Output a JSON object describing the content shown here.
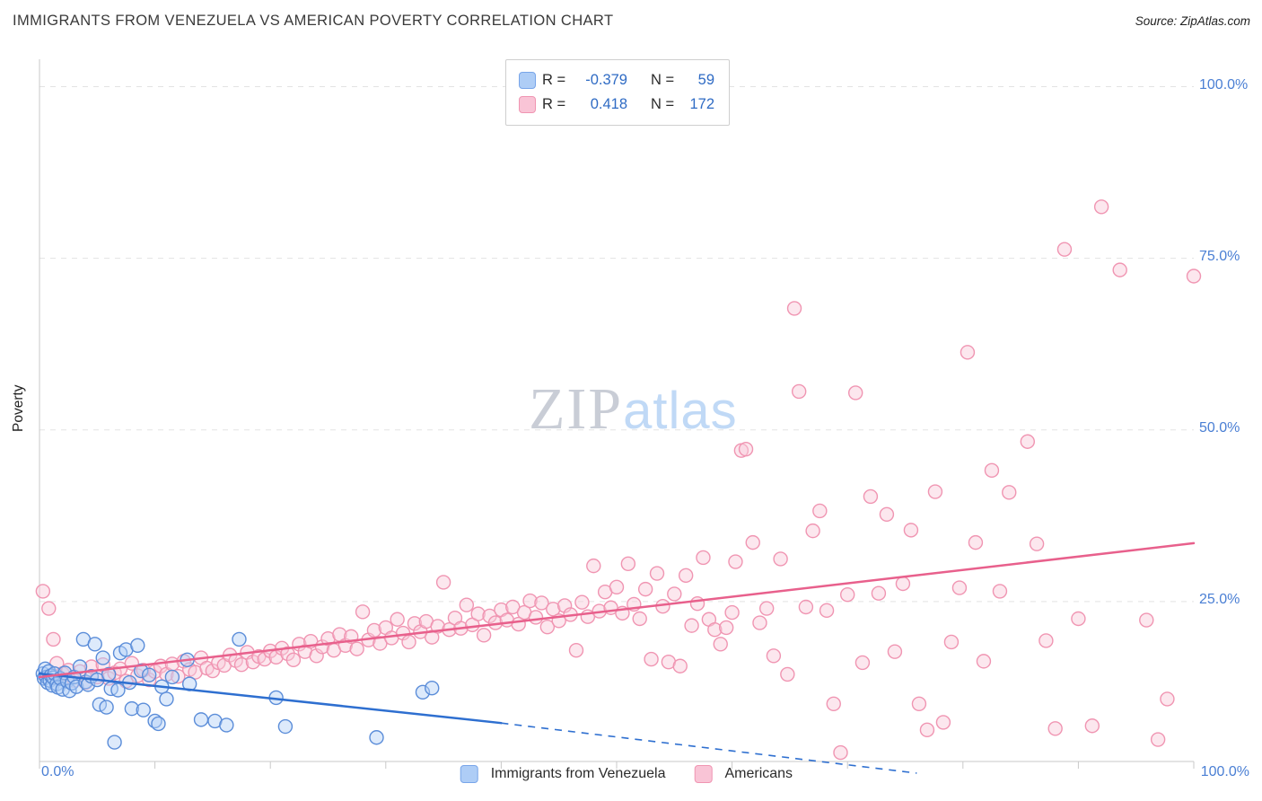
{
  "title": "IMMIGRANTS FROM VENEZUELA VS AMERICAN POVERTY CORRELATION CHART",
  "source": "Source: ZipAtlas.com",
  "watermark": {
    "zip": "ZIP",
    "atlas": "atlas"
  },
  "axes": {
    "y_label": "Poverty",
    "x_min_label": "0.0%",
    "x_max_label": "100.0%",
    "y_tick_labels": [
      "100.0%",
      "75.0%",
      "50.0%",
      "25.0%"
    ]
  },
  "legend_box": {
    "rows": [
      {
        "r_label": "R =",
        "r_value": "-0.379",
        "n_label": "N =",
        "n_value": "59"
      },
      {
        "r_label": "R =",
        "r_value": "0.418",
        "n_label": "N =",
        "n_value": "172"
      }
    ]
  },
  "bottom_legend": [
    {
      "label": "Immigrants from Venezuela"
    },
    {
      "label": "Americans"
    }
  ],
  "colors": {
    "tick_label_blue": "#4a7fd4",
    "value_blue": "#2f6bc4",
    "grid": "#e3e3e3",
    "axis": "#c9c9c9"
  },
  "chart_data": {
    "type": "scatter",
    "title": "IMMIGRANTS FROM VENEZUELA VS AMERICAN POVERTY CORRELATION CHART",
    "xlabel": "Immigrants from Venezuela (%)",
    "ylabel": "Poverty",
    "xlim": [
      0,
      100
    ],
    "ylim": [
      0,
      100
    ],
    "x_unit": "%",
    "y_unit": "%",
    "grid": "horizontal-dashed",
    "legend_position": "bottom-center",
    "series": [
      {
        "name": "Immigrants from Venezuela",
        "R": -0.379,
        "N": 59,
        "fill": "#b3d0f7",
        "edge": "#5b8dd9",
        "points": [
          [
            0.3,
            14.5
          ],
          [
            0.4,
            13.8
          ],
          [
            0.5,
            15.2
          ],
          [
            0.6,
            14.0
          ],
          [
            0.7,
            13.2
          ],
          [
            0.8,
            14.8
          ],
          [
            0.9,
            13.5
          ],
          [
            1.0,
            14.2
          ],
          [
            1.1,
            12.8
          ],
          [
            1.2,
            13.9
          ],
          [
            1.3,
            14.5
          ],
          [
            1.5,
            13.0
          ],
          [
            1.6,
            12.5
          ],
          [
            1.8,
            13.8
          ],
          [
            2.0,
            12.2
          ],
          [
            2.2,
            14.6
          ],
          [
            2.4,
            13.4
          ],
          [
            2.6,
            12.0
          ],
          [
            2.8,
            13.1
          ],
          [
            3.0,
            14.0
          ],
          [
            3.2,
            12.6
          ],
          [
            3.5,
            15.5
          ],
          [
            3.8,
            19.5
          ],
          [
            4.0,
            13.3
          ],
          [
            4.2,
            12.9
          ],
          [
            4.5,
            14.1
          ],
          [
            4.8,
            18.8
          ],
          [
            5.0,
            13.6
          ],
          [
            5.2,
            10.0
          ],
          [
            5.5,
            16.8
          ],
          [
            5.8,
            9.6
          ],
          [
            6.0,
            14.4
          ],
          [
            6.2,
            12.3
          ],
          [
            6.5,
            4.5
          ],
          [
            6.8,
            12.1
          ],
          [
            7.0,
            17.5
          ],
          [
            7.5,
            18.0
          ],
          [
            7.8,
            13.2
          ],
          [
            8.0,
            9.4
          ],
          [
            8.5,
            18.6
          ],
          [
            8.8,
            14.9
          ],
          [
            9.0,
            9.2
          ],
          [
            9.5,
            14.3
          ],
          [
            10.0,
            7.6
          ],
          [
            10.3,
            7.2
          ],
          [
            10.6,
            12.6
          ],
          [
            11.0,
            10.8
          ],
          [
            11.5,
            14.0
          ],
          [
            12.8,
            16.5
          ],
          [
            13.0,
            13.0
          ],
          [
            14.0,
            7.8
          ],
          [
            15.2,
            7.6
          ],
          [
            16.2,
            7.0
          ],
          [
            17.3,
            19.5
          ],
          [
            20.5,
            11.0
          ],
          [
            21.3,
            6.8
          ],
          [
            29.2,
            5.2
          ],
          [
            33.2,
            11.8
          ],
          [
            34.0,
            12.4
          ]
        ]
      },
      {
        "name": "Americans",
        "R": 0.418,
        "N": 172,
        "fill": "#f9c9da",
        "edge": "#f095b2",
        "points": [
          [
            0.3,
            26.5
          ],
          [
            0.8,
            24.0
          ],
          [
            1.2,
            19.5
          ],
          [
            1.5,
            16.0
          ],
          [
            2.0,
            14.5
          ],
          [
            2.5,
            15.0
          ],
          [
            3.0,
            13.5
          ],
          [
            3.5,
            14.8
          ],
          [
            4.0,
            13.2
          ],
          [
            4.5,
            15.5
          ],
          [
            5.0,
            14.0
          ],
          [
            5.5,
            15.8
          ],
          [
            6.0,
            13.8
          ],
          [
            6.5,
            14.6
          ],
          [
            7.0,
            15.2
          ],
          [
            7.5,
            13.4
          ],
          [
            8.0,
            16.0
          ],
          [
            8.5,
            14.2
          ],
          [
            9.0,
            15.0
          ],
          [
            9.5,
            13.6
          ],
          [
            10.0,
            14.8
          ],
          [
            10.5,
            15.6
          ],
          [
            11.0,
            14.4
          ],
          [
            11.5,
            15.9
          ],
          [
            12.0,
            14.1
          ],
          [
            12.5,
            16.3
          ],
          [
            13.0,
            15.1
          ],
          [
            13.5,
            14.7
          ],
          [
            14.0,
            16.8
          ],
          [
            14.5,
            15.3
          ],
          [
            15.0,
            14.9
          ],
          [
            15.5,
            16.1
          ],
          [
            16.0,
            15.7
          ],
          [
            16.5,
            17.2
          ],
          [
            17.0,
            16.4
          ],
          [
            17.5,
            15.8
          ],
          [
            18.0,
            17.6
          ],
          [
            18.5,
            16.2
          ],
          [
            19.0,
            17.0
          ],
          [
            19.5,
            16.6
          ],
          [
            20.0,
            17.8
          ],
          [
            20.5,
            16.9
          ],
          [
            21.0,
            18.2
          ],
          [
            21.5,
            17.4
          ],
          [
            22.0,
            16.5
          ],
          [
            22.5,
            18.8
          ],
          [
            23.0,
            17.7
          ],
          [
            23.5,
            19.2
          ],
          [
            24.0,
            17.1
          ],
          [
            24.5,
            18.4
          ],
          [
            25.0,
            19.6
          ],
          [
            25.5,
            17.9
          ],
          [
            26.0,
            20.2
          ],
          [
            26.5,
            18.6
          ],
          [
            27.0,
            19.9
          ],
          [
            27.5,
            18.1
          ],
          [
            28.0,
            23.5
          ],
          [
            28.5,
            19.4
          ],
          [
            29.0,
            20.8
          ],
          [
            29.5,
            18.9
          ],
          [
            30.0,
            21.2
          ],
          [
            30.5,
            19.7
          ],
          [
            31.0,
            22.4
          ],
          [
            31.5,
            20.4
          ],
          [
            32.0,
            19.1
          ],
          [
            32.5,
            21.8
          ],
          [
            33.0,
            20.6
          ],
          [
            33.5,
            22.1
          ],
          [
            34.0,
            19.8
          ],
          [
            34.5,
            21.4
          ],
          [
            35.0,
            27.8
          ],
          [
            35.5,
            20.9
          ],
          [
            36.0,
            22.6
          ],
          [
            36.5,
            21.1
          ],
          [
            37.0,
            24.5
          ],
          [
            37.5,
            21.6
          ],
          [
            38.0,
            23.2
          ],
          [
            38.5,
            20.1
          ],
          [
            39.0,
            22.9
          ],
          [
            39.5,
            21.9
          ],
          [
            40.0,
            23.8
          ],
          [
            40.5,
            22.3
          ],
          [
            41.0,
            24.2
          ],
          [
            41.5,
            21.7
          ],
          [
            42.0,
            23.4
          ],
          [
            42.5,
            25.1
          ],
          [
            43.0,
            22.7
          ],
          [
            43.5,
            24.8
          ],
          [
            44.0,
            21.3
          ],
          [
            44.5,
            23.9
          ],
          [
            45.0,
            22.2
          ],
          [
            45.5,
            24.4
          ],
          [
            46.0,
            23.1
          ],
          [
            46.5,
            17.9
          ],
          [
            47.0,
            24.9
          ],
          [
            47.5,
            22.8
          ],
          [
            48.0,
            30.2
          ],
          [
            48.5,
            23.6
          ],
          [
            49.0,
            26.4
          ],
          [
            49.5,
            24.1
          ],
          [
            50.0,
            27.1
          ],
          [
            50.5,
            23.3
          ],
          [
            51.0,
            30.5
          ],
          [
            51.5,
            24.6
          ],
          [
            52.0,
            22.5
          ],
          [
            52.5,
            26.8
          ],
          [
            53.0,
            16.6
          ],
          [
            53.5,
            29.1
          ],
          [
            54.0,
            24.3
          ],
          [
            54.5,
            16.2
          ],
          [
            55.0,
            26.1
          ],
          [
            55.5,
            15.6
          ],
          [
            56.0,
            28.8
          ],
          [
            56.5,
            21.5
          ],
          [
            57.0,
            24.7
          ],
          [
            57.5,
            31.4
          ],
          [
            58.0,
            22.4
          ],
          [
            58.5,
            20.9
          ],
          [
            59.0,
            18.8
          ],
          [
            59.5,
            21.2
          ],
          [
            60.0,
            23.4
          ],
          [
            60.3,
            30.8
          ],
          [
            60.8,
            47.0
          ],
          [
            61.2,
            47.2
          ],
          [
            61.8,
            33.6
          ],
          [
            62.4,
            21.9
          ],
          [
            63.0,
            24.0
          ],
          [
            63.6,
            17.1
          ],
          [
            64.2,
            31.2
          ],
          [
            64.8,
            14.4
          ],
          [
            65.4,
            67.7
          ],
          [
            65.8,
            55.6
          ],
          [
            66.4,
            24.2
          ],
          [
            67.0,
            35.3
          ],
          [
            67.6,
            38.2
          ],
          [
            68.2,
            23.7
          ],
          [
            68.8,
            10.1
          ],
          [
            69.4,
            3.0
          ],
          [
            70.0,
            26.0
          ],
          [
            70.7,
            55.4
          ],
          [
            71.3,
            16.1
          ],
          [
            72.0,
            40.3
          ],
          [
            72.7,
            26.2
          ],
          [
            73.4,
            37.7
          ],
          [
            74.1,
            17.7
          ],
          [
            74.8,
            27.6
          ],
          [
            75.5,
            35.4
          ],
          [
            76.2,
            10.1
          ],
          [
            76.9,
            6.3
          ],
          [
            77.6,
            41.0
          ],
          [
            78.3,
            7.4
          ],
          [
            79.0,
            19.1
          ],
          [
            79.7,
            27.0
          ],
          [
            80.4,
            61.3
          ],
          [
            81.1,
            33.6
          ],
          [
            81.8,
            16.3
          ],
          [
            82.5,
            44.1
          ],
          [
            83.2,
            26.5
          ],
          [
            84.0,
            40.9
          ],
          [
            85.6,
            48.3
          ],
          [
            86.4,
            33.4
          ],
          [
            87.2,
            19.3
          ],
          [
            88.0,
            6.5
          ],
          [
            88.8,
            76.3
          ],
          [
            90.0,
            22.5
          ],
          [
            91.2,
            6.9
          ],
          [
            92.0,
            82.5
          ],
          [
            93.6,
            73.3
          ],
          [
            95.9,
            22.3
          ],
          [
            96.9,
            4.9
          ],
          [
            97.7,
            10.8
          ],
          [
            100.0,
            72.4
          ]
        ]
      }
    ],
    "trend_lines": [
      {
        "series": "Immigrants from Venezuela",
        "color": "#2e6fd0",
        "solid": [
          [
            0,
            14.5
          ],
          [
            40,
            7.3
          ]
        ],
        "dashed": [
          [
            40,
            7.3
          ],
          [
            76,
            0.0
          ]
        ]
      },
      {
        "series": "Americans",
        "color": "#e8608c",
        "solid": [
          [
            0,
            14.0
          ],
          [
            100,
            33.5
          ]
        ]
      }
    ]
  }
}
